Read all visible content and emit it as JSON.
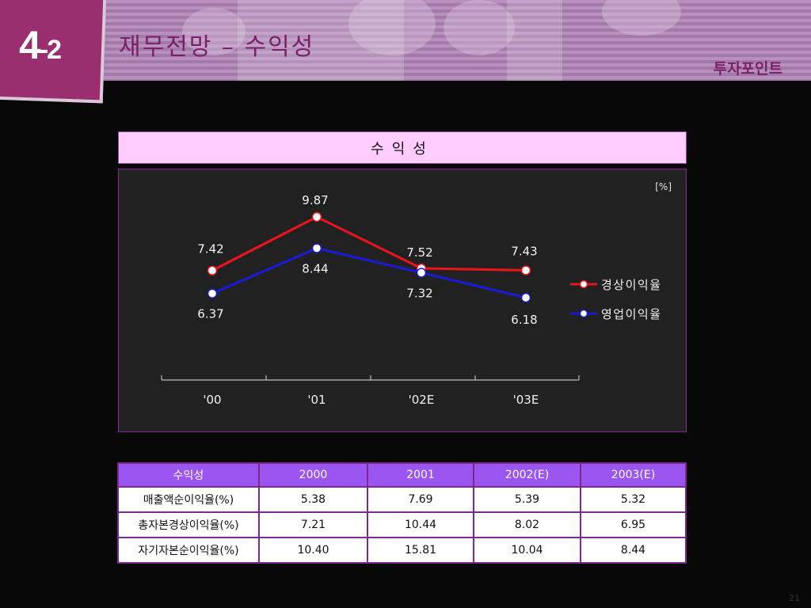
{
  "header": {
    "badge_main": "4",
    "badge_sub": "-2",
    "title": "재무전망 – 수익성",
    "section_tag": "투자포인트"
  },
  "chart_title": "수익성",
  "chart_data": {
    "type": "line",
    "unit": "[%]",
    "categories": [
      "'00",
      "'01",
      "'02E",
      "'03E"
    ],
    "series": [
      {
        "name": "경상이익율",
        "color": "#e8141e",
        "values": [
          7.42,
          9.87,
          7.52,
          7.43
        ]
      },
      {
        "name": "영업이익율",
        "color": "#1a1ad0",
        "values": [
          6.37,
          8.44,
          7.32,
          6.18
        ]
      }
    ],
    "legend_position": "right",
    "grid": false
  },
  "table": {
    "headers": [
      "수익성",
      "2000",
      "2001",
      "2002(E)",
      "2003(E)"
    ],
    "rows": [
      [
        "매출액순이익율(%)",
        "5.38",
        "7.69",
        "5.39",
        "5.32"
      ],
      [
        "총자본경상이익율(%)",
        "7.21",
        "10.44",
        "8.02",
        "6.95"
      ],
      [
        "자기자본순이익율(%)",
        "10.40",
        "15.81",
        "10.04",
        "8.44"
      ]
    ]
  },
  "colors": {
    "badge": "#9a2f70",
    "title_text": "#7a1f6a",
    "chart_header_bg": "#ffccff",
    "table_header_bg": "#9b55f0",
    "table_border": "#7a2a8a"
  },
  "page_number": "21"
}
